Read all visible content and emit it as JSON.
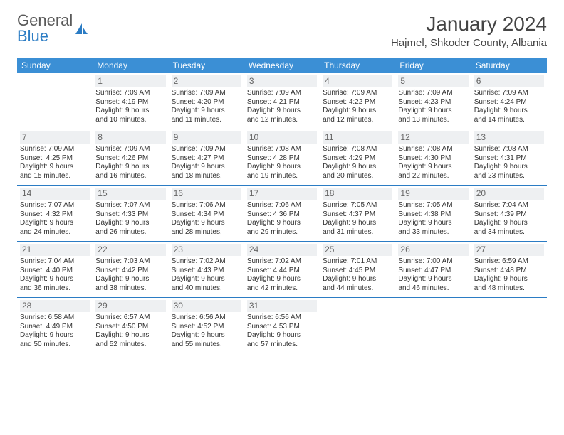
{
  "logo": {
    "line1": "General",
    "line2": "Blue",
    "text_color": "#5a5a5a",
    "accent_color": "#2b7cc4"
  },
  "title": "January 2024",
  "location": "Hajmel, Shkoder County, Albania",
  "colors": {
    "header_bg": "#3b8fd5",
    "header_text": "#ffffff",
    "row_divider": "#2b7cc4",
    "daynum_bg": "#eef0f2",
    "daynum_text": "#666666",
    "body_text": "#333333",
    "background": "#ffffff"
  },
  "typography": {
    "title_fontsize": 28,
    "location_fontsize": 15,
    "header_fontsize": 12,
    "daynum_fontsize": 12,
    "detail_fontsize": 10
  },
  "day_headers": [
    "Sunday",
    "Monday",
    "Tuesday",
    "Wednesday",
    "Thursday",
    "Friday",
    "Saturday"
  ],
  "weeks": [
    [
      {
        "empty": true
      },
      {
        "num": "1",
        "sunrise": "Sunrise: 7:09 AM",
        "sunset": "Sunset: 4:19 PM",
        "day1": "Daylight: 9 hours",
        "day2": "and 10 minutes."
      },
      {
        "num": "2",
        "sunrise": "Sunrise: 7:09 AM",
        "sunset": "Sunset: 4:20 PM",
        "day1": "Daylight: 9 hours",
        "day2": "and 11 minutes."
      },
      {
        "num": "3",
        "sunrise": "Sunrise: 7:09 AM",
        "sunset": "Sunset: 4:21 PM",
        "day1": "Daylight: 9 hours",
        "day2": "and 12 minutes."
      },
      {
        "num": "4",
        "sunrise": "Sunrise: 7:09 AM",
        "sunset": "Sunset: 4:22 PM",
        "day1": "Daylight: 9 hours",
        "day2": "and 12 minutes."
      },
      {
        "num": "5",
        "sunrise": "Sunrise: 7:09 AM",
        "sunset": "Sunset: 4:23 PM",
        "day1": "Daylight: 9 hours",
        "day2": "and 13 minutes."
      },
      {
        "num": "6",
        "sunrise": "Sunrise: 7:09 AM",
        "sunset": "Sunset: 4:24 PM",
        "day1": "Daylight: 9 hours",
        "day2": "and 14 minutes."
      }
    ],
    [
      {
        "num": "7",
        "sunrise": "Sunrise: 7:09 AM",
        "sunset": "Sunset: 4:25 PM",
        "day1": "Daylight: 9 hours",
        "day2": "and 15 minutes."
      },
      {
        "num": "8",
        "sunrise": "Sunrise: 7:09 AM",
        "sunset": "Sunset: 4:26 PM",
        "day1": "Daylight: 9 hours",
        "day2": "and 16 minutes."
      },
      {
        "num": "9",
        "sunrise": "Sunrise: 7:09 AM",
        "sunset": "Sunset: 4:27 PM",
        "day1": "Daylight: 9 hours",
        "day2": "and 18 minutes."
      },
      {
        "num": "10",
        "sunrise": "Sunrise: 7:08 AM",
        "sunset": "Sunset: 4:28 PM",
        "day1": "Daylight: 9 hours",
        "day2": "and 19 minutes."
      },
      {
        "num": "11",
        "sunrise": "Sunrise: 7:08 AM",
        "sunset": "Sunset: 4:29 PM",
        "day1": "Daylight: 9 hours",
        "day2": "and 20 minutes."
      },
      {
        "num": "12",
        "sunrise": "Sunrise: 7:08 AM",
        "sunset": "Sunset: 4:30 PM",
        "day1": "Daylight: 9 hours",
        "day2": "and 22 minutes."
      },
      {
        "num": "13",
        "sunrise": "Sunrise: 7:08 AM",
        "sunset": "Sunset: 4:31 PM",
        "day1": "Daylight: 9 hours",
        "day2": "and 23 minutes."
      }
    ],
    [
      {
        "num": "14",
        "sunrise": "Sunrise: 7:07 AM",
        "sunset": "Sunset: 4:32 PM",
        "day1": "Daylight: 9 hours",
        "day2": "and 24 minutes."
      },
      {
        "num": "15",
        "sunrise": "Sunrise: 7:07 AM",
        "sunset": "Sunset: 4:33 PM",
        "day1": "Daylight: 9 hours",
        "day2": "and 26 minutes."
      },
      {
        "num": "16",
        "sunrise": "Sunrise: 7:06 AM",
        "sunset": "Sunset: 4:34 PM",
        "day1": "Daylight: 9 hours",
        "day2": "and 28 minutes."
      },
      {
        "num": "17",
        "sunrise": "Sunrise: 7:06 AM",
        "sunset": "Sunset: 4:36 PM",
        "day1": "Daylight: 9 hours",
        "day2": "and 29 minutes."
      },
      {
        "num": "18",
        "sunrise": "Sunrise: 7:05 AM",
        "sunset": "Sunset: 4:37 PM",
        "day1": "Daylight: 9 hours",
        "day2": "and 31 minutes."
      },
      {
        "num": "19",
        "sunrise": "Sunrise: 7:05 AM",
        "sunset": "Sunset: 4:38 PM",
        "day1": "Daylight: 9 hours",
        "day2": "and 33 minutes."
      },
      {
        "num": "20",
        "sunrise": "Sunrise: 7:04 AM",
        "sunset": "Sunset: 4:39 PM",
        "day1": "Daylight: 9 hours",
        "day2": "and 34 minutes."
      }
    ],
    [
      {
        "num": "21",
        "sunrise": "Sunrise: 7:04 AM",
        "sunset": "Sunset: 4:40 PM",
        "day1": "Daylight: 9 hours",
        "day2": "and 36 minutes."
      },
      {
        "num": "22",
        "sunrise": "Sunrise: 7:03 AM",
        "sunset": "Sunset: 4:42 PM",
        "day1": "Daylight: 9 hours",
        "day2": "and 38 minutes."
      },
      {
        "num": "23",
        "sunrise": "Sunrise: 7:02 AM",
        "sunset": "Sunset: 4:43 PM",
        "day1": "Daylight: 9 hours",
        "day2": "and 40 minutes."
      },
      {
        "num": "24",
        "sunrise": "Sunrise: 7:02 AM",
        "sunset": "Sunset: 4:44 PM",
        "day1": "Daylight: 9 hours",
        "day2": "and 42 minutes."
      },
      {
        "num": "25",
        "sunrise": "Sunrise: 7:01 AM",
        "sunset": "Sunset: 4:45 PM",
        "day1": "Daylight: 9 hours",
        "day2": "and 44 minutes."
      },
      {
        "num": "26",
        "sunrise": "Sunrise: 7:00 AM",
        "sunset": "Sunset: 4:47 PM",
        "day1": "Daylight: 9 hours",
        "day2": "and 46 minutes."
      },
      {
        "num": "27",
        "sunrise": "Sunrise: 6:59 AM",
        "sunset": "Sunset: 4:48 PM",
        "day1": "Daylight: 9 hours",
        "day2": "and 48 minutes."
      }
    ],
    [
      {
        "num": "28",
        "sunrise": "Sunrise: 6:58 AM",
        "sunset": "Sunset: 4:49 PM",
        "day1": "Daylight: 9 hours",
        "day2": "and 50 minutes."
      },
      {
        "num": "29",
        "sunrise": "Sunrise: 6:57 AM",
        "sunset": "Sunset: 4:50 PM",
        "day1": "Daylight: 9 hours",
        "day2": "and 52 minutes."
      },
      {
        "num": "30",
        "sunrise": "Sunrise: 6:56 AM",
        "sunset": "Sunset: 4:52 PM",
        "day1": "Daylight: 9 hours",
        "day2": "and 55 minutes."
      },
      {
        "num": "31",
        "sunrise": "Sunrise: 6:56 AM",
        "sunset": "Sunset: 4:53 PM",
        "day1": "Daylight: 9 hours",
        "day2": "and 57 minutes."
      },
      {
        "empty": true
      },
      {
        "empty": true
      },
      {
        "empty": true
      }
    ]
  ]
}
